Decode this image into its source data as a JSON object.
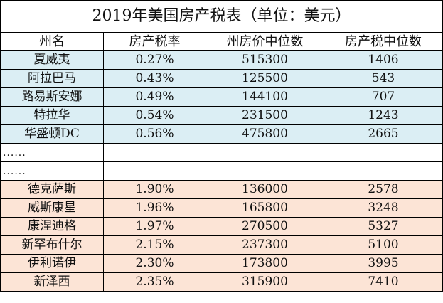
{
  "title": "2019年美国房产税表（单位：美元）",
  "headers": [
    "州名",
    "房产税率",
    "州房价中位数",
    "房产税中位数"
  ],
  "ellipsis": [
    "......",
    "......"
  ],
  "colors": {
    "top_band": "#dbeef4",
    "bottom_band": "#fce4d6",
    "border": "#000000"
  },
  "top_rows": [
    {
      "state": "夏威夷",
      "rate": "0.27%",
      "median_price": "515300",
      "median_tax": "1406"
    },
    {
      "state": "阿拉巴马",
      "rate": "0.43%",
      "median_price": "125500",
      "median_tax": "543"
    },
    {
      "state": "路易斯安娜",
      "rate": "0.49%",
      "median_price": "144100",
      "median_tax": "707"
    },
    {
      "state": "特拉华",
      "rate": "0.54%",
      "median_price": "231500",
      "median_tax": "1243"
    },
    {
      "state": "华盛顿DC",
      "rate": "0.56%",
      "median_price": "475800",
      "median_tax": "2665"
    }
  ],
  "bottom_rows": [
    {
      "state": "德克萨斯",
      "rate": "1.90%",
      "median_price": "136000",
      "median_tax": "2578"
    },
    {
      "state": "威斯康星",
      "rate": "1.96%",
      "median_price": "165800",
      "median_tax": "3248"
    },
    {
      "state": "康涅迪格",
      "rate": "1.97%",
      "median_price": "270500",
      "median_tax": "5327"
    },
    {
      "state": "新罕布什尔",
      "rate": "2.15%",
      "median_price": "237300",
      "median_tax": "5100"
    },
    {
      "state": "伊利诺伊",
      "rate": "2.30%",
      "median_price": "173800",
      "median_tax": "3995"
    },
    {
      "state": "新泽西",
      "rate": "2.35%",
      "median_price": "315900",
      "median_tax": "7410"
    }
  ]
}
